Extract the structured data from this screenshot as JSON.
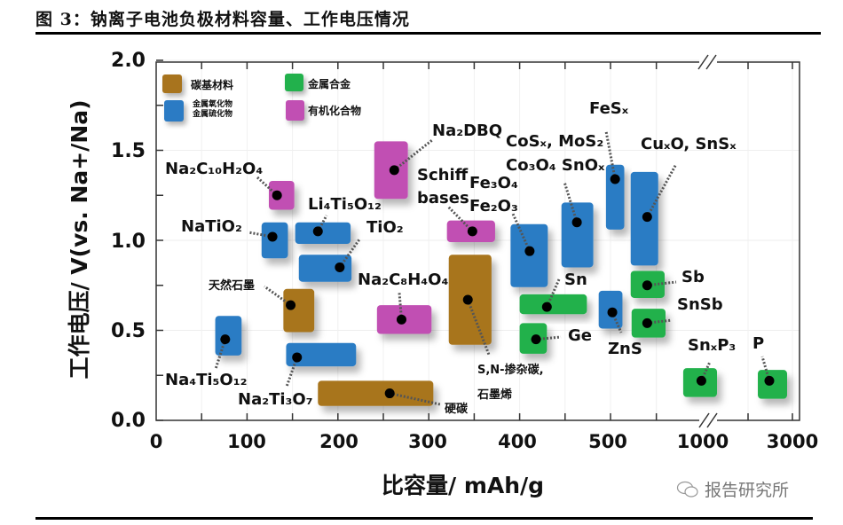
{
  "title": "图 3：钠离子电池负极材料容量、工作电压情况",
  "watermark": {
    "icon": "wechat-icon",
    "text": "报告研究所"
  },
  "chart_data": {
    "type": "range-box scatter",
    "xlabel": "比容量/ mAh/g",
    "ylabel": "工作电压/ V(vs. Na+/Na)",
    "ylim": [
      0,
      2.0
    ],
    "x_axis_break": [
      550,
      1000
    ],
    "xticks": [
      "0",
      "100",
      "200",
      "300",
      "400",
      "500",
      "1000",
      "3000"
    ],
    "xtick_values": [
      0,
      100,
      200,
      300,
      400,
      500,
      1000,
      3000
    ],
    "yticks": [
      "0.0",
      "0.5",
      "1.0",
      "1.5",
      "2.0"
    ],
    "ytick_values": [
      0,
      0.5,
      1.0,
      1.5,
      2.0
    ],
    "grid": true,
    "legend_placement": "top-left",
    "categories": [
      {
        "key": "carbon",
        "label": "碳基材料",
        "color": "#a8741e"
      },
      {
        "key": "alloy",
        "label": "金属合金",
        "color": "#22b14c"
      },
      {
        "key": "oxide",
        "label": "金属氧化物",
        "label2": "金属硫化物",
        "color": "#2b7bc4"
      },
      {
        "key": "organic",
        "label": "有机化合物",
        "color": "#c14fb3"
      }
    ],
    "items": [
      {
        "label": "Na₂DBQ",
        "category": "organic",
        "x_range": [
          240,
          277
        ],
        "y_range": [
          1.23,
          1.55
        ],
        "point": [
          262,
          1.39
        ]
      },
      {
        "label": "Na₂C₁₀H₂O₄",
        "category": "organic",
        "x_range": [
          124,
          152
        ],
        "y_range": [
          1.17,
          1.33
        ],
        "point": [
          133,
          1.25
        ]
      },
      {
        "label": "NaTiO₂",
        "category": "oxide",
        "x_range": [
          116,
          145
        ],
        "y_range": [
          0.9,
          1.1
        ],
        "point": [
          128,
          1.02
        ]
      },
      {
        "label": "Li₄Ti₅O₁₂",
        "category": "oxide",
        "x_range": [
          153,
          214
        ],
        "y_range": [
          0.98,
          1.1
        ],
        "point": [
          178,
          1.05
        ]
      },
      {
        "label": "TiO₂",
        "category": "oxide",
        "x_range": [
          157,
          215
        ],
        "y_range": [
          0.77,
          0.92
        ],
        "point": [
          202,
          0.85
        ]
      },
      {
        "label": "Schiff",
        "label2": "bases",
        "category": "organic",
        "x_range": [
          320,
          373
        ],
        "y_range": [
          0.99,
          1.11
        ],
        "point": [
          348,
          1.05
        ]
      },
      {
        "label": "S,N-掺杂碳,",
        "label2": "石墨烯",
        "category": "carbon",
        "x_range": [
          322,
          369
        ],
        "y_range": [
          0.42,
          0.92
        ],
        "point": [
          343,
          0.67
        ]
      },
      {
        "label": "Fe₃O₄",
        "label2": "Fe₂O₃",
        "category": "oxide",
        "x_range": [
          390,
          431
        ],
        "y_range": [
          0.74,
          1.09
        ],
        "point": [
          411,
          0.94
        ]
      },
      {
        "label": "CoSₓ, MoS₂",
        "label2": "Co₃O₄ SnOₓ",
        "category": "oxide",
        "x_range": [
          446,
          481
        ],
        "y_range": [
          0.85,
          1.21
        ],
        "point": [
          463,
          1.1
        ]
      },
      {
        "label": "FeSₓ",
        "category": "oxide",
        "x_range": [
          495,
          515
        ],
        "y_range": [
          1.06,
          1.42
        ],
        "point": [
          505,
          1.34
        ]
      },
      {
        "label": "CuₓO, SnSₓ",
        "category": "oxide",
        "x_range": [
          522,
          552
        ],
        "y_range": [
          0.86,
          1.38
        ],
        "point": [
          540,
          1.13
        ]
      },
      {
        "label": "天然石墨",
        "category": "carbon",
        "x_range": [
          140,
          174
        ],
        "y_range": [
          0.49,
          0.73
        ],
        "point": [
          148,
          0.64
        ]
      },
      {
        "label": "Na₂C₈H₄O₄",
        "category": "organic",
        "x_range": [
          243,
          303
        ],
        "y_range": [
          0.48,
          0.64
        ],
        "point": [
          270,
          0.56
        ]
      },
      {
        "label": "Na₄Ti₅O₁₂",
        "category": "oxide",
        "x_range": [
          65,
          94
        ],
        "y_range": [
          0.36,
          0.58
        ],
        "point": [
          76,
          0.45
        ]
      },
      {
        "label": "Na₂Ti₃O₇",
        "category": "oxide",
        "x_range": [
          143,
          220
        ],
        "y_range": [
          0.3,
          0.43
        ],
        "point": [
          155,
          0.35
        ]
      },
      {
        "label": "硬碳",
        "category": "carbon",
        "x_range": [
          178,
          305
        ],
        "y_range": [
          0.08,
          0.22
        ],
        "point": [
          257,
          0.15
        ]
      },
      {
        "label": "Sn",
        "category": "alloy",
        "x_range": [
          400,
          474
        ],
        "y_range": [
          0.59,
          0.7
        ],
        "point": [
          430,
          0.63
        ]
      },
      {
        "label": "Ge",
        "category": "alloy",
        "x_range": [
          400,
          430
        ],
        "y_range": [
          0.37,
          0.54
        ],
        "point": [
          418,
          0.45
        ]
      },
      {
        "label": "ZnS",
        "category": "oxide",
        "x_range": [
          487,
          513
        ],
        "y_range": [
          0.51,
          0.72
        ],
        "point": [
          502,
          0.6
        ]
      },
      {
        "label": "Sb",
        "category": "alloy",
        "x_range": [
          522,
          559
        ],
        "y_range": [
          0.68,
          0.83
        ],
        "point": [
          540,
          0.75
        ]
      },
      {
        "label": "SnSb",
        "category": "alloy",
        "x_range": [
          523,
          560
        ],
        "y_range": [
          0.46,
          0.62
        ],
        "point": [
          540,
          0.54
        ]
      },
      {
        "label": "SnₓP₃",
        "category": "alloy",
        "x_range": [
          862,
          1317
        ],
        "y_range": [
          0.13,
          0.29
        ],
        "point": [
          990,
          0.22
        ]
      },
      {
        "label": "P",
        "category": "alloy",
        "x_range": [
          2228,
          2881
        ],
        "y_range": [
          0.12,
          0.28
        ],
        "point": [
          2485,
          0.22
        ]
      }
    ]
  }
}
